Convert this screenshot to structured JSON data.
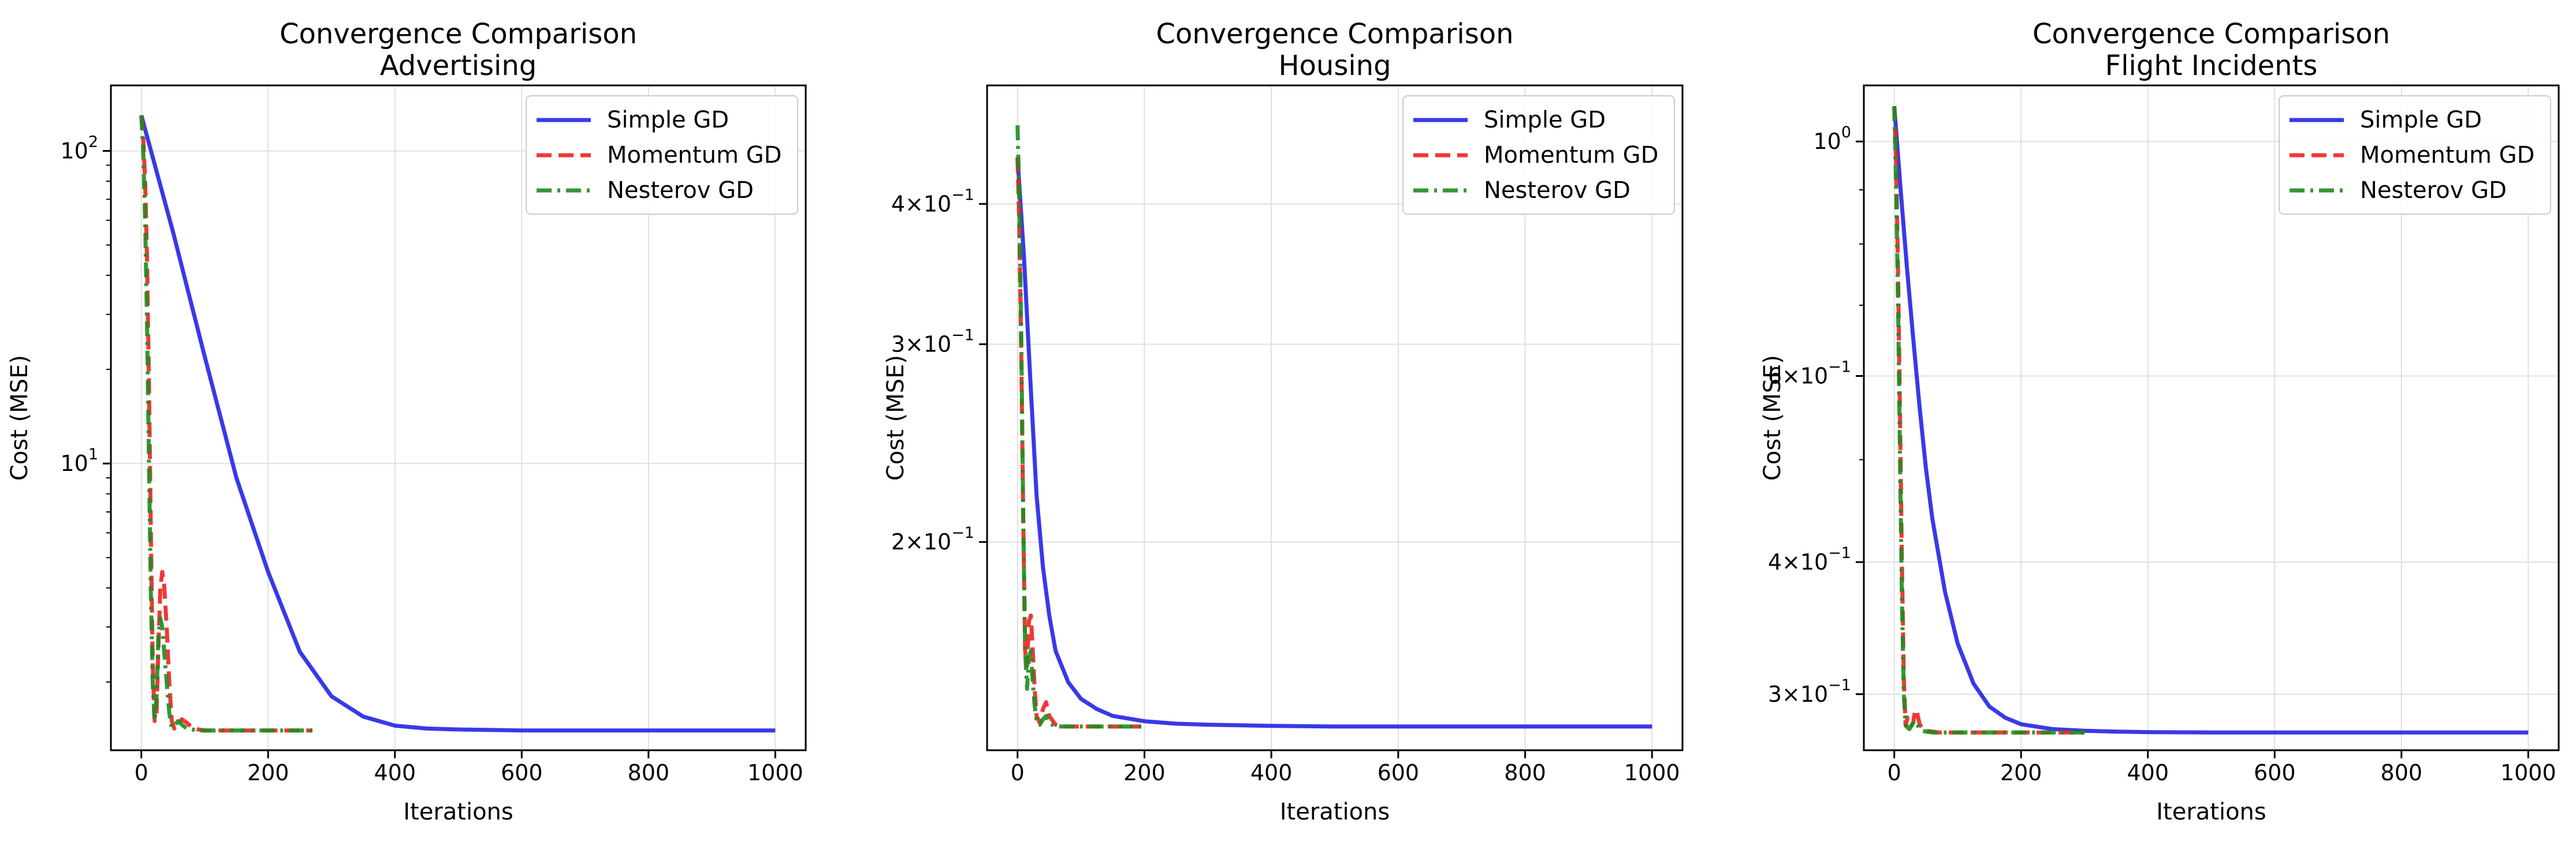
{
  "figure": {
    "background": "#ffffff",
    "grid_color": "#e0e0e0",
    "series_styles": [
      {
        "name": "Simple GD",
        "color": "#2424e6",
        "dash": "solid"
      },
      {
        "name": "Momentum GD",
        "color": "#ee2222",
        "dash": "dashed"
      },
      {
        "name": "Nesterov GD",
        "color": "#1f8c1f",
        "dash": "dashdot"
      }
    ]
  },
  "chart_data": [
    {
      "type": "line",
      "title": [
        "Convergence Comparison",
        "Advertising"
      ],
      "xlabel": "Iterations",
      "ylabel": "Cost (MSE)",
      "yscale": "log",
      "xlim": [
        -48,
        1048
      ],
      "ylim": [
        1.21,
        162
      ],
      "xticks": [
        0,
        200,
        400,
        600,
        800,
        1000
      ],
      "yticks": [
        {
          "value": 10,
          "label": "10^1"
        },
        {
          "value": 100,
          "label": "10^2"
        }
      ],
      "yminor_ticks": [
        2,
        3,
        4,
        5,
        6,
        7,
        8,
        9,
        20,
        30,
        40,
        50,
        60,
        70,
        80,
        90
      ],
      "grid": true,
      "legend": "upper right",
      "series": [
        {
          "name": "Simple GD",
          "x": [
            0,
            50,
            100,
            150,
            200,
            250,
            300,
            350,
            400,
            450,
            500,
            600,
            700,
            800,
            900,
            1000
          ],
          "y": [
            130,
            55,
            22,
            9.0,
            4.5,
            2.5,
            1.8,
            1.55,
            1.45,
            1.42,
            1.41,
            1.4,
            1.4,
            1.4,
            1.4,
            1.4
          ]
        },
        {
          "name": "Momentum GD",
          "x": [
            0,
            3,
            6,
            9,
            12,
            15,
            18,
            21,
            24,
            27,
            30,
            33,
            36,
            40,
            44,
            48,
            52,
            58,
            64,
            72,
            80,
            90,
            100,
            130,
            160,
            200,
            240,
            270
          ],
          "y": [
            130,
            110,
            80,
            45,
            18,
            6.0,
            2.3,
            1.5,
            1.6,
            2.6,
            4.0,
            4.5,
            4.1,
            3.0,
            2.0,
            1.5,
            1.42,
            1.46,
            1.52,
            1.48,
            1.43,
            1.41,
            1.4,
            1.4,
            1.4,
            1.4,
            1.4,
            1.4
          ]
        },
        {
          "name": "Nesterov GD",
          "x": [
            0,
            3,
            6,
            9,
            12,
            15,
            18,
            21,
            24,
            27,
            30,
            33,
            36,
            40,
            44,
            48,
            52,
            58,
            64,
            72,
            80,
            90,
            100,
            130,
            160,
            200,
            240,
            270
          ],
          "y": [
            130,
            100,
            60,
            28,
            10,
            3.8,
            2.0,
            1.5,
            1.8,
            2.8,
            3.2,
            3.0,
            2.5,
            2.0,
            1.6,
            1.43,
            1.45,
            1.5,
            1.46,
            1.42,
            1.41,
            1.4,
            1.4,
            1.4,
            1.4,
            1.4,
            1.4,
            1.4
          ]
        }
      ]
    },
    {
      "type": "line",
      "title": [
        "Convergence Comparison",
        "Housing"
      ],
      "xlabel": "Iterations",
      "ylabel": "Cost (MSE)",
      "yscale": "log",
      "xlim": [
        -48,
        1048
      ],
      "ylim": [
        0.1305,
        0.51
      ],
      "xticks": [
        0,
        200,
        400,
        600,
        800,
        1000
      ],
      "yticks": [
        {
          "value": 0.2,
          "label": "2×10^−1"
        },
        {
          "value": 0.3,
          "label": "3×10^−1"
        },
        {
          "value": 0.4,
          "label": "4×10^−1"
        }
      ],
      "yminor_ticks": [],
      "grid": true,
      "legend": "upper right",
      "series": [
        {
          "name": "Simple GD",
          "x": [
            0,
            10,
            20,
            30,
            40,
            50,
            60,
            80,
            100,
            125,
            150,
            200,
            250,
            300,
            400,
            500,
            600,
            800,
            1000
          ],
          "y": [
            0.44,
            0.36,
            0.28,
            0.22,
            0.19,
            0.172,
            0.16,
            0.15,
            0.145,
            0.142,
            0.14,
            0.1385,
            0.1378,
            0.1375,
            0.1372,
            0.137,
            0.137,
            0.137,
            0.137
          ]
        },
        {
          "name": "Momentum GD",
          "x": [
            0,
            3,
            6,
            9,
            12,
            15,
            18,
            21,
            24,
            27,
            30,
            35,
            40,
            45,
            50,
            60,
            70,
            80,
            100,
            150,
            195
          ],
          "y": [
            0.44,
            0.38,
            0.29,
            0.21,
            0.16,
            0.155,
            0.17,
            0.172,
            0.16,
            0.148,
            0.14,
            0.138,
            0.142,
            0.144,
            0.14,
            0.1375,
            0.137,
            0.137,
            0.137,
            0.137,
            0.137
          ]
        },
        {
          "name": "Nesterov GD",
          "x": [
            0,
            3,
            6,
            9,
            12,
            15,
            18,
            21,
            24,
            27,
            30,
            35,
            40,
            45,
            50,
            60,
            70,
            80,
            100,
            150,
            195
          ],
          "y": [
            0.47,
            0.4,
            0.3,
            0.21,
            0.16,
            0.148,
            0.158,
            0.16,
            0.15,
            0.143,
            0.139,
            0.1375,
            0.139,
            0.14,
            0.138,
            0.137,
            0.137,
            0.137,
            0.137,
            0.137,
            0.137
          ]
        }
      ]
    },
    {
      "type": "line",
      "title": [
        "Convergence Comparison",
        "Flight Incidents"
      ],
      "xlabel": "Iterations",
      "ylabel": "Cost (MSE)",
      "yscale": "log",
      "xlim": [
        -48,
        1048
      ],
      "ylim": [
        0.2655,
        1.13
      ],
      "xticks": [
        0,
        200,
        400,
        600,
        800,
        1000
      ],
      "yticks": [
        {
          "value": 1.0,
          "label": "10^0"
        },
        {
          "value": 0.3,
          "label": "3×10^−1"
        },
        {
          "value": 0.4,
          "label": "4×10^−1"
        },
        {
          "value": 0.6,
          "label": "6×10^−1"
        }
      ],
      "yminor_ticks": [
        0.5,
        0.7,
        0.8,
        0.9
      ],
      "grid": true,
      "legend": "upper right",
      "series": [
        {
          "name": "Simple GD",
          "x": [
            0,
            10,
            20,
            30,
            40,
            50,
            60,
            80,
            100,
            125,
            150,
            175,
            200,
            250,
            300,
            350,
            400,
            500,
            600,
            800,
            1000
          ],
          "y": [
            1.08,
            0.9,
            0.76,
            0.65,
            0.56,
            0.49,
            0.44,
            0.375,
            0.335,
            0.307,
            0.292,
            0.285,
            0.281,
            0.278,
            0.277,
            0.2765,
            0.2762,
            0.276,
            0.276,
            0.276,
            0.276
          ]
        },
        {
          "name": "Momentum GD",
          "x": [
            0,
            3,
            6,
            9,
            12,
            15,
            18,
            21,
            24,
            27,
            30,
            33,
            36,
            40,
            45,
            50,
            60,
            70,
            80,
            100,
            150,
            200,
            250,
            300
          ],
          "y": [
            1.08,
            0.95,
            0.75,
            0.55,
            0.4,
            0.31,
            0.28,
            0.285,
            0.284,
            0.28,
            0.282,
            0.29,
            0.288,
            0.281,
            0.278,
            0.277,
            0.2765,
            0.276,
            0.276,
            0.276,
            0.276,
            0.276,
            0.276,
            0.276
          ]
        },
        {
          "name": "Nesterov GD",
          "x": [
            0,
            3,
            6,
            9,
            12,
            15,
            18,
            21,
            24,
            27,
            30,
            33,
            36,
            40,
            45,
            50,
            60,
            70,
            80,
            100,
            150,
            200,
            250,
            300
          ],
          "y": [
            1.08,
            0.9,
            0.7,
            0.5,
            0.37,
            0.3,
            0.281,
            0.279,
            0.278,
            0.28,
            0.282,
            0.283,
            0.281,
            0.2785,
            0.277,
            0.2765,
            0.276,
            0.276,
            0.276,
            0.276,
            0.276,
            0.276,
            0.276,
            0.276
          ]
        }
      ]
    }
  ]
}
